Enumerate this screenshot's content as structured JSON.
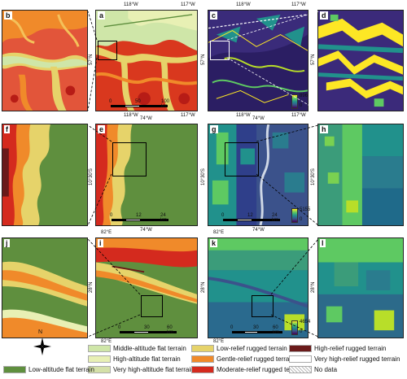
{
  "panels": [
    {
      "id": "b",
      "label": "b"
    },
    {
      "id": "a",
      "label": "a",
      "top_lon": [
        "118°W",
        "117°W"
      ],
      "bottom_lon": [
        "118°W",
        "117°W"
      ],
      "lat": "57°N",
      "scale": [
        "0",
        "50",
        "100 km"
      ]
    },
    {
      "id": "c",
      "label": "c",
      "top_lon": [
        "118°W",
        "117°W"
      ],
      "bottom_lon": [
        "118°W",
        "117°W"
      ],
      "lat": "57°N",
      "cbar_max": "896",
      "cbar_min": "0"
    },
    {
      "id": "d",
      "label": "d",
      "lat": "57°N"
    },
    {
      "id": "f",
      "label": "f"
    },
    {
      "id": "e",
      "label": "e",
      "top_lon": "74°W",
      "bottom_lon": "74°W",
      "lat": "10°30'S",
      "scale": [
        "0",
        "12",
        "24 km"
      ]
    },
    {
      "id": "g",
      "label": "g",
      "top_lon": "74°W",
      "bottom_lon": "74°W",
      "lat": "10°30'S",
      "cbar_max": "5155",
      "cbar_min": "0",
      "scale": [
        "0",
        "12",
        "24 km"
      ]
    },
    {
      "id": "h",
      "label": "h",
      "lat": "10°30'S"
    },
    {
      "id": "j",
      "label": "j"
    },
    {
      "id": "i",
      "label": "i",
      "top_lon": "82°E",
      "bottom_lon": "82°E",
      "lat": "28°N",
      "scale": [
        "0",
        "30",
        "60 km"
      ]
    },
    {
      "id": "k",
      "label": "k",
      "top_lon": "82°E",
      "bottom_lon": "82°E",
      "lat": "28°N",
      "cbar_max": "4654",
      "cbar_min": "0",
      "scale": [
        "0",
        "30",
        "60 km"
      ]
    },
    {
      "id": "l",
      "label": "l",
      "lat": "28°N"
    }
  ],
  "north_label": "N",
  "legend": [
    {
      "name": "Middle-altitude flat terrain",
      "color": "#cfe6a8"
    },
    {
      "name": "High-altitude flat terrain",
      "color": "#e8f0b4"
    },
    {
      "name": "Very high-altitude flat terrain",
      "color": "#d4e0a8"
    },
    {
      "name": "Low-altitude flat terrain",
      "color": "#5f8f3e"
    },
    {
      "name": "Low-relief rugged terrain",
      "color": "#e6d36a"
    },
    {
      "name": "Gentle-relief rugged terrain",
      "color": "#f08a2a"
    },
    {
      "name": "Moderate-relief rugged terrain",
      "color": "#d42a1e"
    },
    {
      "name": "High-relief rugged terrain",
      "color": "#6a1a1a"
    },
    {
      "name": "Very high-relief rugged terrain",
      "color": "#ffffff"
    },
    {
      "name": "No data",
      "color": "hatch"
    }
  ]
}
